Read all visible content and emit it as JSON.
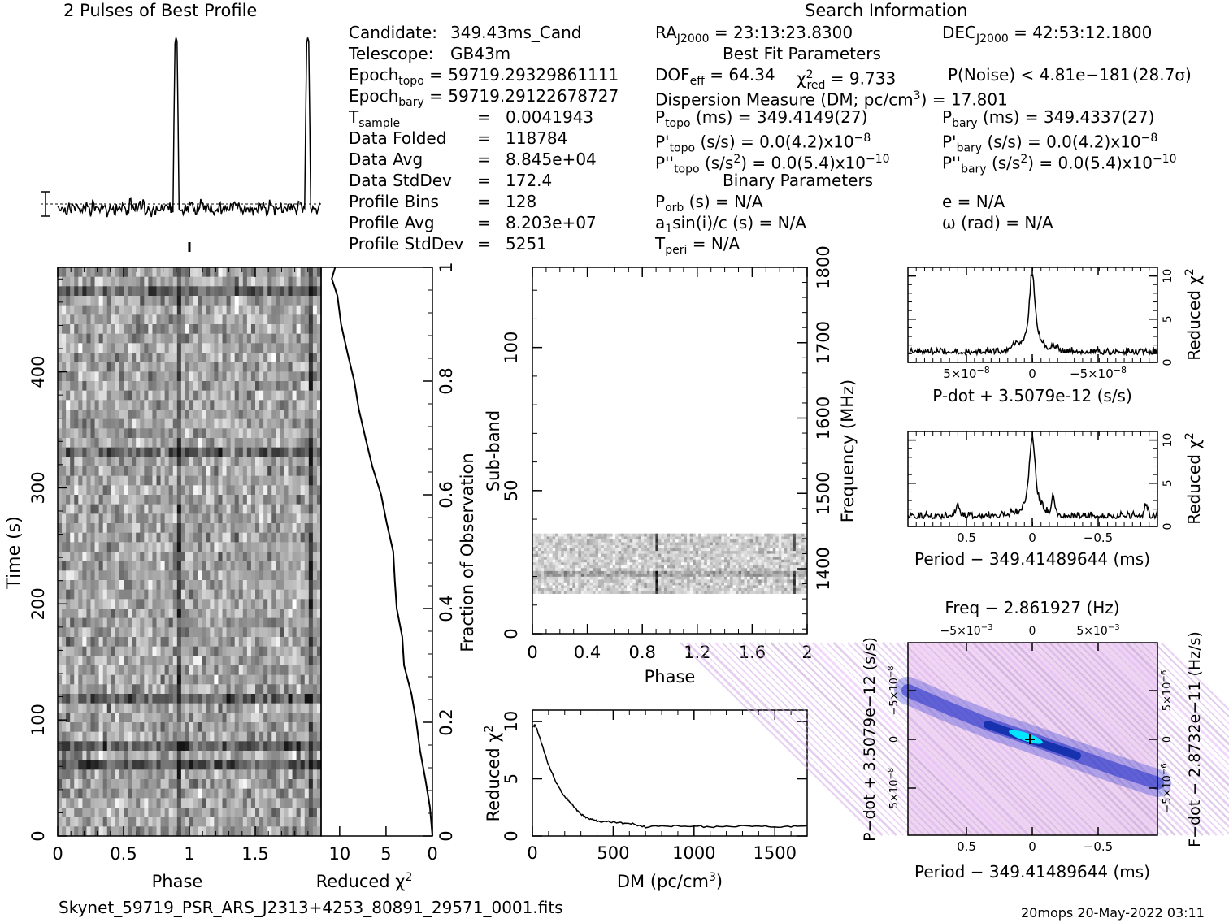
{
  "header": {
    "left_title": "2 Pulses of Best Profile",
    "right_title": "Search Information"
  },
  "candidate_info": [
    {
      "label": "Candidate:",
      "value": "349.43ms_Cand"
    },
    {
      "label": "Telescope:",
      "value": "GB43m"
    },
    {
      "label": "Epoch",
      "sub": "topo",
      "value": "= 59719.29329861111"
    },
    {
      "label": "Epoch",
      "sub": "bary",
      "value": "= 59719.29122678727"
    },
    {
      "label": "T",
      "sub": "sample",
      "eq": "=",
      "value": "0.0041943"
    },
    {
      "label": "Data Folded",
      "eq": "=",
      "value": "118784"
    },
    {
      "label": "Data Avg",
      "eq": "=",
      "value": "8.845e+04"
    },
    {
      "label": "Data StdDev",
      "eq": "=",
      "value": "172.4"
    },
    {
      "label": "Profile Bins",
      "eq": "=",
      "value": "128"
    },
    {
      "label": "Profile Avg",
      "eq": "=",
      "value": "8.203e+07"
    },
    {
      "label": "Profile StdDev",
      "eq": "=",
      "value": "5251"
    }
  ],
  "search_info": {
    "ra_label": "RA",
    "ra_sub": "J2000",
    "ra_value": "= 23:13:23.8300",
    "dec_label": "DEC",
    "dec_sub": "J2000",
    "dec_value": "= 42:53:12.1800",
    "best_fit_heading": "Best Fit Parameters",
    "dof_label": "DOF",
    "dof_sub": "eff",
    "dof_value": "= 64.34",
    "chi_label": "χ",
    "chi_sup": "2",
    "chi_sub": "red",
    "chi_value": "= 9.733",
    "pnoise": "P(Noise) < 4.81e−181",
    "sigma": "(28.7σ)",
    "dm_text": "Dispersion Measure (DM; pc/cm",
    "dm_sup": "3",
    "dm_value": ") = 17.801",
    "ptopo_label": "P",
    "ptopo_sub": "topo",
    "ptopo_value": "(ms) =  349.4149(27)",
    "pbary_label": "P",
    "pbary_sub": "bary",
    "pbary_value": "(ms) =  349.4337(27)",
    "pdtopo_label": "P'",
    "pdtopo_sub": "topo",
    "pdtopo_value": "(s/s) = 0.0(4.2)x10",
    "pdtopo_exp": "−8",
    "pdbary_label": "P'",
    "pdbary_sub": "bary",
    "pdbary_value": "(s/s) = 0.0(4.2)x10",
    "pdbary_exp": "−8",
    "pddtopo_label": "P''",
    "pddtopo_sub": "topo",
    "pddtopo_value": "(s/s",
    "pddtopo_sup": "2",
    "pddtopo_value2": ") = 0.0(5.4)x10",
    "pddtopo_exp": "−10",
    "pddbary_label": "P''",
    "pddbary_sub": "bary",
    "pddbary_value": "(s/s",
    "pddbary_sup": "2",
    "pddbary_value2": ") = 0.0(5.4)x10",
    "pddbary_exp": "−10",
    "binary_heading": "Binary Parameters",
    "porb_label": "P",
    "porb_sub": "orb",
    "porb_value": "(s) = N/A",
    "e_value": "e = N/A",
    "asini_label": "a",
    "asini_sub": "1",
    "asini_value": "sin(i)/c (s) = N/A",
    "omega_value": "ω (rad) = N/A",
    "tperi_label": "T",
    "tperi_sub": "peri",
    "tperi_value": "= N/A"
  },
  "footer": {
    "filename": "Skynet_59719_PSR_ARS_J2313+4253_80891_29571_0001.fits",
    "stamp": "20mops 20-May-2022 03:11"
  },
  "colors": {
    "ink": "#000000",
    "cmap_low": "#f4e4f4",
    "cmap_mid": "#2a3ad8",
    "cmap_high": "#00e0ff"
  },
  "chart_data": [
    {
      "id": "profile",
      "type": "line",
      "title": "2 Pulses of Best Profile",
      "x_range": [
        0,
        2
      ],
      "peak_phase": 0.9,
      "note": "two cycles of the folded profile with a single narrow pulse per cycle"
    },
    {
      "id": "time_phase",
      "type": "heatmap",
      "xlabel": "Phase",
      "ylabel": "Time (s)",
      "xlim": [
        0,
        2
      ],
      "ylim": [
        0,
        490
      ],
      "x_ticks": [
        "0",
        "0.5",
        "1",
        "1.5"
      ],
      "y_ticks": [
        "0",
        "100",
        "200",
        "300",
        "400"
      ],
      "pulse_phase": 0.9
    },
    {
      "id": "time_chi2",
      "type": "line",
      "xlabel": "Reduced χ",
      "xlabel_sup": "2",
      "x_ticks": [
        "10",
        "5",
        "0"
      ],
      "x_range_reversed": [
        12,
        0
      ],
      "y2label": "Fraction of Observation",
      "y2_ticks": [
        "0",
        "0.2",
        "0.4",
        "0.6",
        "0.8",
        "1"
      ],
      "points": [
        [
          0,
          0
        ],
        [
          0.05,
          0.4
        ],
        [
          0.1,
          0.8
        ],
        [
          0.15,
          1.3
        ],
        [
          0.2,
          1.8
        ],
        [
          0.25,
          2.4
        ],
        [
          0.3,
          3.0
        ],
        [
          0.35,
          3.3
        ],
        [
          0.4,
          3.8
        ],
        [
          0.45,
          4.1
        ],
        [
          0.5,
          4.4
        ],
        [
          0.55,
          4.9
        ],
        [
          0.6,
          5.6
        ],
        [
          0.65,
          6.4
        ],
        [
          0.7,
          7.2
        ],
        [
          0.75,
          7.8
        ],
        [
          0.8,
          8.5
        ],
        [
          0.85,
          9.2
        ],
        [
          0.9,
          9.8
        ],
        [
          0.95,
          10.4
        ],
        [
          0.98,
          10.7
        ],
        [
          1.0,
          10.5
        ]
      ]
    },
    {
      "id": "subband_phase",
      "type": "heatmap",
      "xlabel": "Phase",
      "ylabel": "Sub-band",
      "y2label": "Frequency (MHz)",
      "x_ticks": [
        "0",
        "0.4",
        "0.8",
        "1.2",
        "1.6",
        "2"
      ],
      "y_ticks": [
        "0",
        "50",
        "100"
      ],
      "y2_ticks": [
        "1400",
        "1500",
        "1600",
        "1700",
        "1800"
      ],
      "xlim": [
        0,
        2
      ],
      "ylim": [
        0,
        128
      ],
      "active_subbands": [
        14,
        35
      ],
      "pulse_phase": 0.9
    },
    {
      "id": "dm_chi2",
      "type": "line",
      "xlabel": "DM (pc/cm",
      "xlabel_sup": "3",
      "xlabel_end": ")",
      "ylabel": "Reduced χ",
      "ylabel_sup": "2",
      "x_ticks": [
        "0",
        "500",
        "1000",
        "1500"
      ],
      "y_ticks": [
        "0",
        "5",
        "10"
      ],
      "xlim": [
        0,
        1700
      ],
      "ylim": [
        0,
        11
      ],
      "points": [
        [
          0,
          9.5
        ],
        [
          18,
          9.7
        ],
        [
          50,
          8.4
        ],
        [
          100,
          6.2
        ],
        [
          150,
          4.6
        ],
        [
          200,
          3.4
        ],
        [
          230,
          3.0
        ],
        [
          260,
          2.5
        ],
        [
          300,
          1.9
        ],
        [
          350,
          1.5
        ],
        [
          400,
          1.3
        ],
        [
          500,
          1.2
        ],
        [
          600,
          1.1
        ],
        [
          700,
          0.8
        ],
        [
          900,
          0.9
        ],
        [
          1100,
          0.8
        ],
        [
          1300,
          0.9
        ],
        [
          1500,
          0.8
        ],
        [
          1700,
          0.9
        ]
      ]
    },
    {
      "id": "pdot_chi2",
      "type": "line",
      "xlabel": "P-dot + 3.5079e-12 (s/s)",
      "y2label": "Reduced χ",
      "y2label_sup": "2",
      "x_ticks": [
        "5×10",
        "0",
        "−5×10"
      ],
      "x_tick_exp": "−8",
      "y2_ticks": [
        "0",
        "5",
        "10"
      ],
      "ylim": [
        0,
        11
      ]
    },
    {
      "id": "period_chi2",
      "type": "line",
      "xlabel": "Period − 349.41489644 (ms)",
      "y2label": "Reduced χ",
      "y2label_sup": "2",
      "x_ticks": [
        "0.5",
        "0",
        "−0.5"
      ],
      "y2_ticks": [
        "0",
        "5",
        "10"
      ],
      "ylim": [
        0,
        11
      ]
    },
    {
      "id": "p_pdot_plane",
      "type": "heatmap",
      "title": "Freq − 2.861927 (Hz)",
      "top_ticks": [
        "−5×10",
        "0",
        "5×10"
      ],
      "top_tick_exp": "−3",
      "xlabel": "Period − 349.41489644 (ms)",
      "x_ticks": [
        "0.5",
        "0",
        "−0.5"
      ],
      "ylabel": "P−dot + 3.5079e−12 (s/s)",
      "y_ticks": [
        "−5×10",
        "0",
        "5×10"
      ],
      "y_tick_exp": "−8",
      "y2label": "F−dot − 2.8732e−11 (Hz/s)",
      "y2_ticks": [
        "5×10",
        "0",
        "−5×10"
      ],
      "y2_tick_exp": "−6"
    }
  ]
}
